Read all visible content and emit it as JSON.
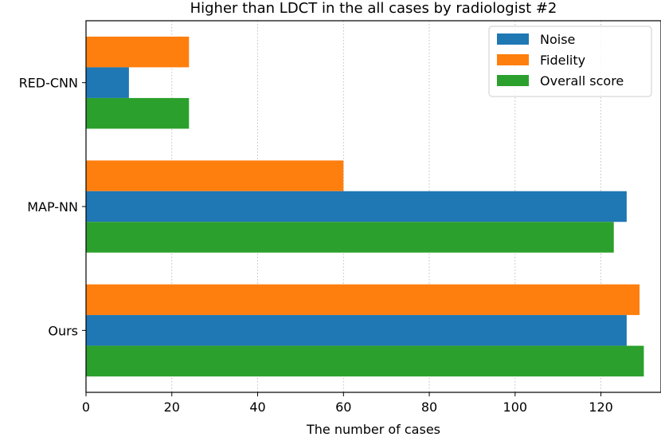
{
  "chart_data": {
    "type": "bar",
    "orientation": "horizontal",
    "title": "Higher than LDCT in the all cases by radiologist #2",
    "xlabel": "The number of cases",
    "ylabel": "",
    "xlim": [
      0,
      134
    ],
    "xticks": [
      0,
      20,
      40,
      60,
      80,
      100,
      120
    ],
    "grid": "x-dotted",
    "legend_position": "top-right",
    "categories": [
      "Ours",
      "MAP-NN",
      "RED-CNN"
    ],
    "series": [
      {
        "name": "Noise",
        "color": "#1f77b4",
        "values": [
          126,
          126,
          10
        ]
      },
      {
        "name": "Fidelity",
        "color": "#ff7f0e",
        "values": [
          129,
          60,
          24
        ]
      },
      {
        "name": "Overall score",
        "color": "#2ca02c",
        "values": [
          130,
          123,
          24
        ]
      }
    ]
  }
}
